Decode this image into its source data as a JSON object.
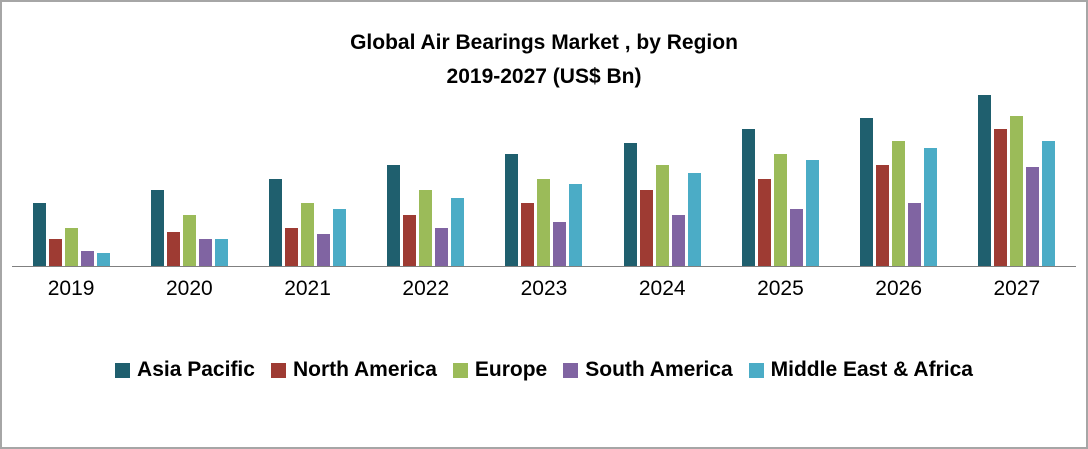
{
  "title_line1": "Global Air Bearings Market  , by Region",
  "title_line2": "2019-2027 (US$ Bn)",
  "chart_data": {
    "type": "bar",
    "title": "Global Air Bearings Market , by Region 2019-2027 (US$ Bn)",
    "xlabel": "",
    "ylabel": "US$ Bn",
    "ylim": [
      0,
      10
    ],
    "grid": false,
    "legend_position": "bottom",
    "categories": [
      "2019",
      "2020",
      "2021",
      "2022",
      "2023",
      "2024",
      "2025",
      "2026",
      "2027"
    ],
    "series": [
      {
        "name": "Asia Pacific",
        "color": "#1f5f6e",
        "values": [
          3.3,
          4.0,
          4.6,
          5.3,
          5.9,
          6.5,
          7.2,
          7.8,
          9.0
        ]
      },
      {
        "name": "North America",
        "color": "#9e3b33",
        "values": [
          1.4,
          1.8,
          2.0,
          2.7,
          3.3,
          4.0,
          4.6,
          5.3,
          7.2
        ]
      },
      {
        "name": "Europe",
        "color": "#9bbb59",
        "values": [
          2.0,
          2.7,
          3.3,
          4.0,
          4.6,
          5.3,
          5.9,
          6.6,
          7.9
        ]
      },
      {
        "name": "South America",
        "color": "#8064a2",
        "values": [
          0.8,
          1.4,
          1.7,
          2.0,
          2.3,
          2.7,
          3.0,
          3.3,
          5.2
        ]
      },
      {
        "name": "Middle East & Africa",
        "color": "#4bacc6",
        "values": [
          0.7,
          1.4,
          3.0,
          3.6,
          4.3,
          4.9,
          5.6,
          6.2,
          6.6
        ]
      }
    ]
  }
}
